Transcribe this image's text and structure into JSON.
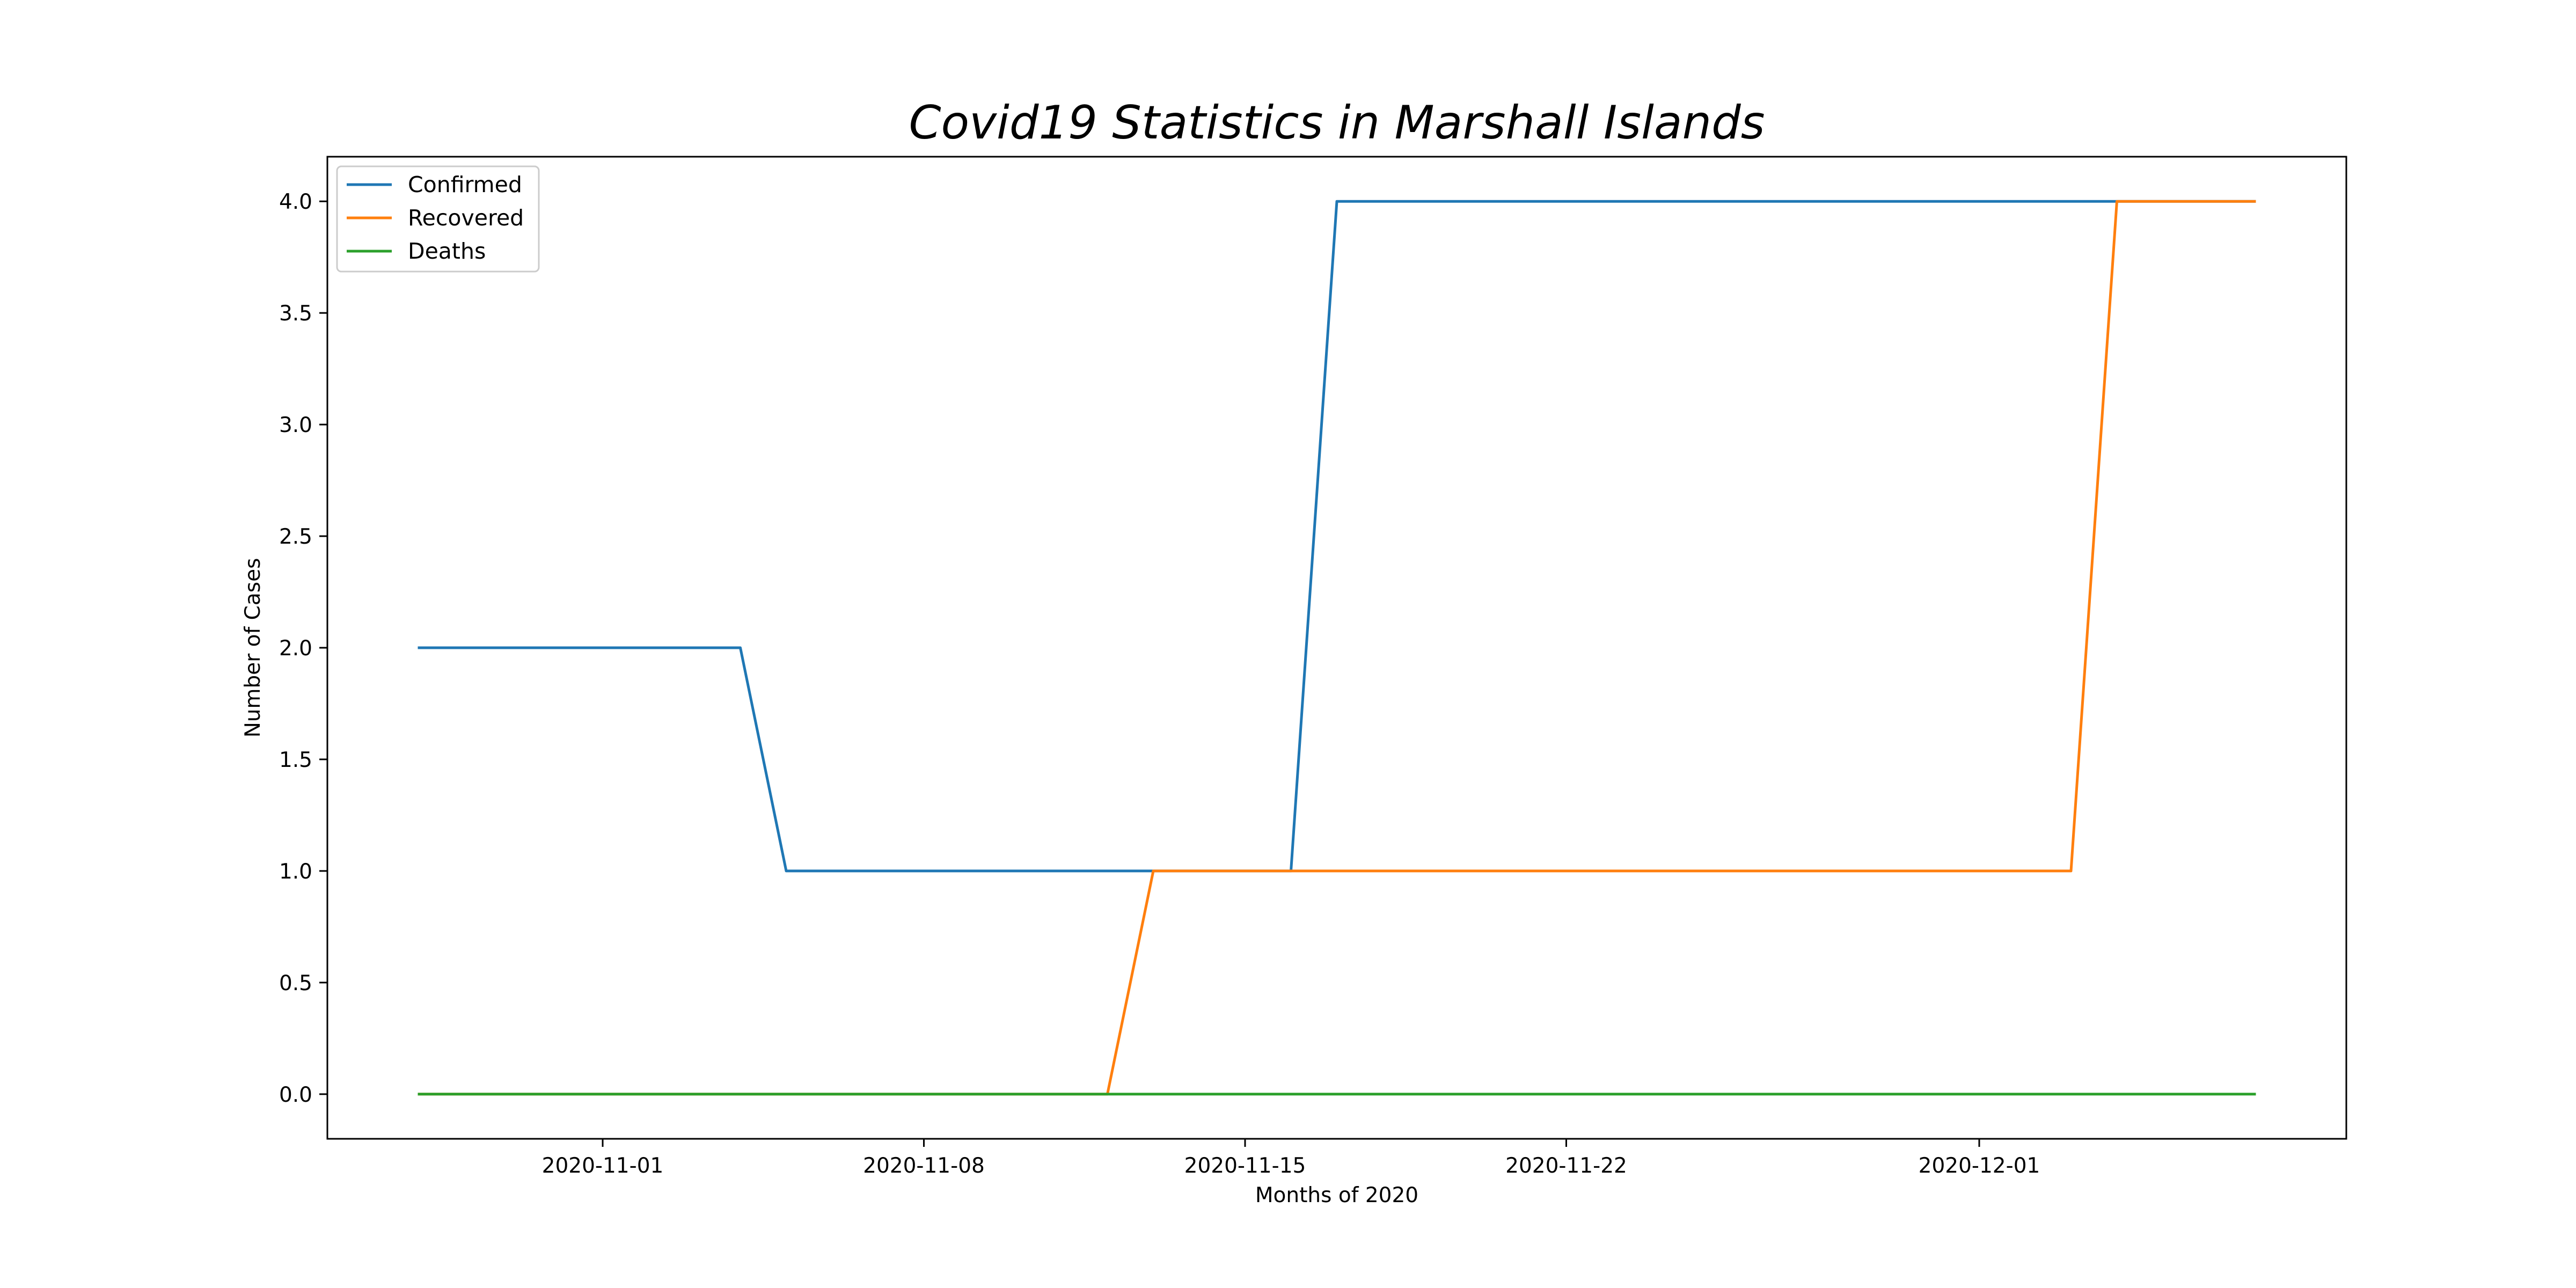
{
  "chart_data": {
    "type": "line",
    "title": "Covid19 Statistics in Marshall Islands",
    "xlabel": "Months of 2020",
    "ylabel": "Number of Cases",
    "x_dates": [
      "2020-10-28",
      "2020-10-29",
      "2020-10-30",
      "2020-10-31",
      "2020-11-01",
      "2020-11-02",
      "2020-11-03",
      "2020-11-04",
      "2020-11-05",
      "2020-11-06",
      "2020-11-07",
      "2020-11-08",
      "2020-11-09",
      "2020-11-10",
      "2020-11-11",
      "2020-11-12",
      "2020-11-13",
      "2020-11-14",
      "2020-11-15",
      "2020-11-16",
      "2020-11-17",
      "2020-11-18",
      "2020-11-19",
      "2020-11-20",
      "2020-11-21",
      "2020-11-22",
      "2020-11-23",
      "2020-11-24",
      "2020-11-25",
      "2020-11-26",
      "2020-11-27",
      "2020-11-28",
      "2020-11-29",
      "2020-11-30",
      "2020-12-01",
      "2020-12-02",
      "2020-12-03",
      "2020-12-04",
      "2020-12-05",
      "2020-12-06",
      "2020-12-07"
    ],
    "series": [
      {
        "name": "Confirmed",
        "color": "#1f77b4",
        "values": [
          2,
          2,
          2,
          2,
          2,
          2,
          2,
          2,
          1,
          1,
          1,
          1,
          1,
          1,
          1,
          1,
          1,
          1,
          1,
          1,
          4,
          4,
          4,
          4,
          4,
          4,
          4,
          4,
          4,
          4,
          4,
          4,
          4,
          4,
          4,
          4,
          4,
          4,
          4,
          4,
          4
        ]
      },
      {
        "name": "Recovered",
        "color": "#ff7f0e",
        "values": [
          0,
          0,
          0,
          0,
          0,
          0,
          0,
          0,
          0,
          0,
          0,
          0,
          0,
          0,
          0,
          0,
          1,
          1,
          1,
          1,
          1,
          1,
          1,
          1,
          1,
          1,
          1,
          1,
          1,
          1,
          1,
          1,
          1,
          1,
          1,
          1,
          1,
          4,
          4,
          4,
          4
        ]
      },
      {
        "name": "Deaths",
        "color": "#2ca02c",
        "values": [
          0,
          0,
          0,
          0,
          0,
          0,
          0,
          0,
          0,
          0,
          0,
          0,
          0,
          0,
          0,
          0,
          0,
          0,
          0,
          0,
          0,
          0,
          0,
          0,
          0,
          0,
          0,
          0,
          0,
          0,
          0,
          0,
          0,
          0,
          0,
          0,
          0,
          0,
          0,
          0,
          0
        ]
      }
    ],
    "x_ticks": [
      "2020-11-01",
      "2020-11-08",
      "2020-11-15",
      "2020-11-22",
      "2020-12-01"
    ],
    "y_ticks": [
      "0.0",
      "0.5",
      "1.0",
      "1.5",
      "2.0",
      "2.5",
      "3.0",
      "3.5",
      "4.0"
    ],
    "ylim": [
      -0.2,
      4.2
    ],
    "xlim": [
      "2020-10-26",
      "2020-12-09"
    ],
    "grid": false,
    "legend_position": "top-left"
  }
}
